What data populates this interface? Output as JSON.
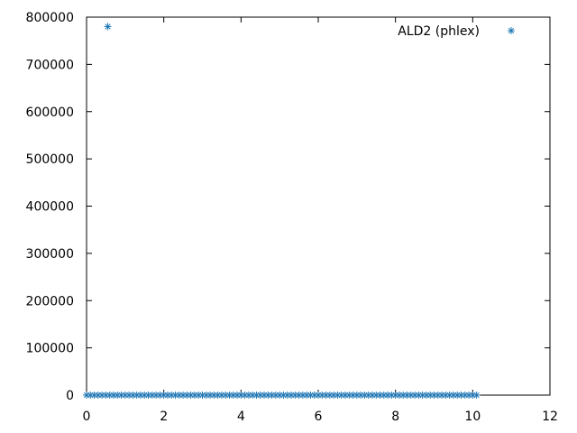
{
  "chart_data": {
    "type": "scatter",
    "title": "",
    "xlabel": "",
    "ylabel": "",
    "xlim": [
      0,
      12
    ],
    "ylim": [
      0,
      800000
    ],
    "x_ticks": [
      "0",
      "2",
      "4",
      "6",
      "8",
      "10",
      "12"
    ],
    "y_ticks": [
      "0",
      "100000",
      "200000",
      "300000",
      "400000",
      "500000",
      "600000",
      "700000",
      "800000"
    ],
    "x_tick_values": [
      0,
      2,
      4,
      6,
      8,
      10,
      12
    ],
    "y_tick_values": [
      0,
      100000,
      200000,
      300000,
      400000,
      500000,
      600000,
      700000,
      800000
    ],
    "grid": false,
    "legend_position": "top-right",
    "marker": "asterisk",
    "series": [
      {
        "name": "ALD2 (phlex)",
        "color": "#1f77b4",
        "points": {
          "x_start": 0,
          "x_end": 10.1,
          "x_step": 0.1,
          "baseline_y": 0,
          "outliers": [
            {
              "x": 0.55,
              "y": 780000
            }
          ]
        }
      }
    ]
  }
}
